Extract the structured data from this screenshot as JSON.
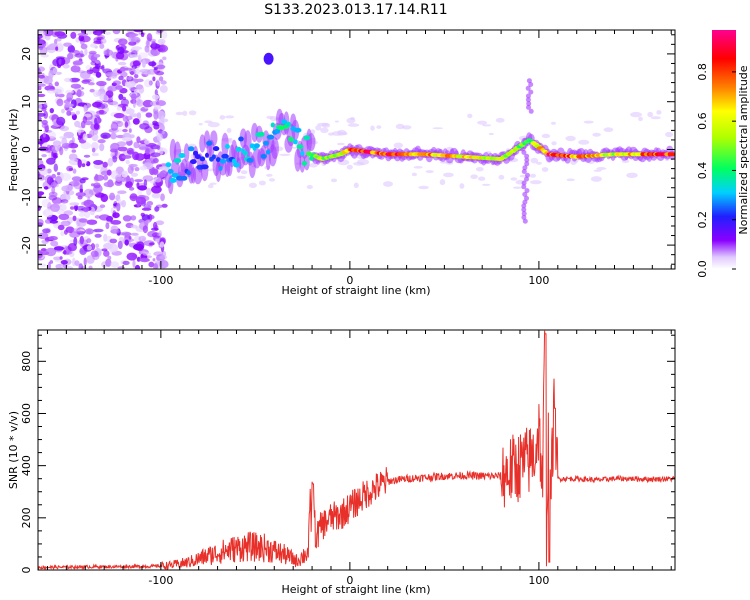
{
  "figure": {
    "title": "S133.2023.013.17.14.R11"
  },
  "colorbar": {
    "label": "Normalized spectral amplitude",
    "ticks": [
      "0.0",
      "0.2",
      "0.4",
      "0.6",
      "0.8"
    ],
    "range": [
      0,
      0.97
    ]
  },
  "chart_data": [
    {
      "type": "heatmap",
      "xlabel": "Height of straight line (km)",
      "ylabel": "Frequency (Hz)",
      "xlim": [
        -165,
        172
      ],
      "ylim": [
        -25,
        25
      ],
      "x_ticks": [
        "-100",
        "0",
        "100"
      ],
      "y_ticks": [
        "-20",
        "-10",
        "0",
        "10",
        "20"
      ],
      "grid": false,
      "colormap": "rainbow (purple → blue → cyan → green → yellow → orange → red → magenta)",
      "description_features": {
        "noise_region_x": [
          -165,
          -98
        ],
        "signal_ridge_freq_hz": -1
      },
      "ridge_points": [
        {
          "x": -95,
          "y": -4,
          "v": 0.35
        },
        {
          "x": -80,
          "y": -2,
          "v": 0.25
        },
        {
          "x": -65,
          "y": -1,
          "v": 0.3
        },
        {
          "x": -45,
          "y": 1,
          "v": 0.35
        },
        {
          "x": -35,
          "y": 4,
          "v": 0.4
        },
        {
          "x": -25,
          "y": 0,
          "v": 0.4
        },
        {
          "x": -15,
          "y": -2,
          "v": 0.6
        },
        {
          "x": -5,
          "y": -1,
          "v": 0.55
        },
        {
          "x": 0,
          "y": 0,
          "v": 0.85
        },
        {
          "x": 20,
          "y": -1,
          "v": 0.9
        },
        {
          "x": 40,
          "y": -1,
          "v": 0.8
        },
        {
          "x": 60,
          "y": -1.5,
          "v": 0.7
        },
        {
          "x": 80,
          "y": -2,
          "v": 0.6
        },
        {
          "x": 95,
          "y": 2,
          "v": 0.5
        },
        {
          "x": 105,
          "y": -1,
          "v": 0.9
        },
        {
          "x": 120,
          "y": -1.5,
          "v": 0.85
        },
        {
          "x": 140,
          "y": -1,
          "v": 0.6
        },
        {
          "x": 165,
          "y": -1,
          "v": 0.9
        }
      ]
    },
    {
      "type": "line",
      "xlabel": "Height of straight line (km)",
      "ylabel": "SNR (10 * v/v)",
      "xlim": [
        -165,
        172
      ],
      "ylim": [
        0,
        920
      ],
      "x_ticks": [
        "-100",
        "0",
        "100"
      ],
      "y_ticks": [
        "0",
        "200",
        "400",
        "600",
        "800"
      ],
      "grid": false,
      "series": [
        {
          "color": "#e8302a",
          "x": [
            -165,
            -140,
            -120,
            -105,
            -95,
            -85,
            -75,
            -65,
            -55,
            -45,
            -35,
            -28,
            -22,
            -20,
            -18,
            -15,
            -10,
            -5,
            0,
            5,
            10,
            15,
            20,
            30,
            40,
            50,
            60,
            70,
            80,
            85,
            90,
            95,
            98,
            100,
            102,
            103,
            104,
            105,
            106,
            108,
            110,
            120,
            130,
            140,
            150,
            160,
            172
          ],
          "y": [
            10,
            12,
            13,
            14,
            18,
            30,
            55,
            75,
            90,
            85,
            60,
            35,
            70,
            330,
            120,
            170,
            200,
            210,
            240,
            270,
            300,
            320,
            340,
            350,
            355,
            360,
            362,
            360,
            360,
            380,
            400,
            420,
            450,
            550,
            300,
            900,
            150,
            500,
            250,
            600,
            350,
            350,
            345,
            350,
            350,
            348,
            350
          ]
        }
      ]
    }
  ]
}
